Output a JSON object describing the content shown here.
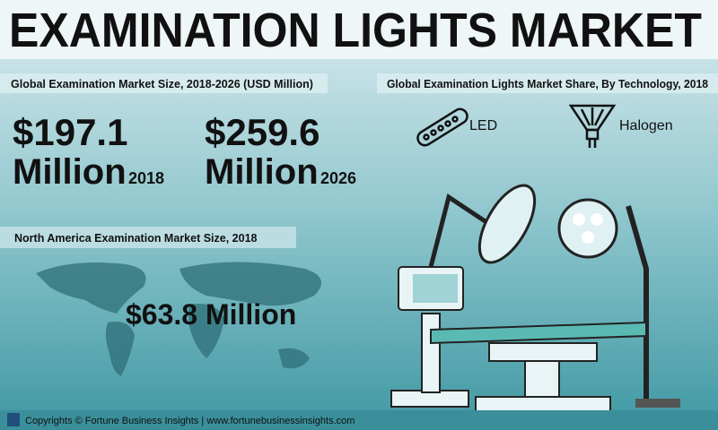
{
  "header": {
    "title": "EXAMINATION LIGHTS MARKET"
  },
  "market_size": {
    "heading": "Global Examination Market Size, 2018-2026 (USD Million)",
    "stats": [
      {
        "value": "$197.1",
        "unit": "Million",
        "year": "2018"
      },
      {
        "value": "$259.6",
        "unit": "Million",
        "year": "2026"
      }
    ]
  },
  "technology_share": {
    "heading": "Global Examination Lights Market Share, By Technology, 2018",
    "items": [
      "LED",
      "Halogen"
    ]
  },
  "north_america": {
    "heading": "North America Examination Market Size, 2018",
    "value": "$63.8 Million"
  },
  "footer": {
    "text": "Copyrights © Fortune Business Insights | www.fortunebusinessinsights.com"
  }
}
